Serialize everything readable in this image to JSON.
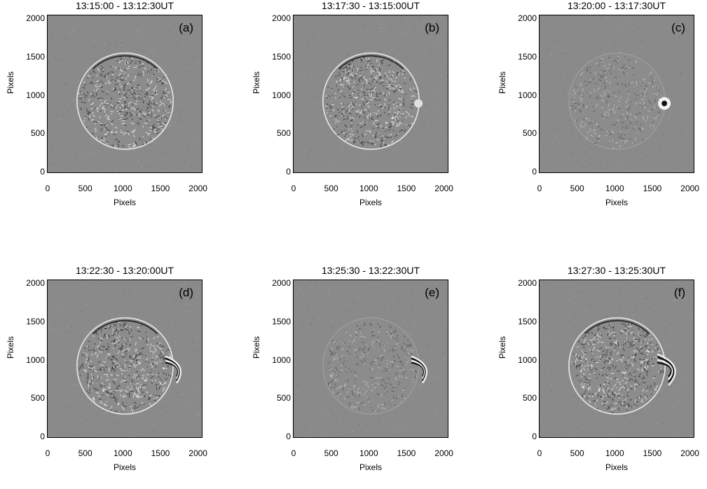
{
  "figure": {
    "panels": [
      {
        "title": "13:15:00 - 13:12:30UT",
        "label": "(a)",
        "style": "bright",
        "flare": "none"
      },
      {
        "title": "13:17:30 - 13:15:00UT",
        "label": "(b)",
        "style": "bright",
        "flare": "small"
      },
      {
        "title": "13:20:00 - 13:17:30UT",
        "label": "(c)",
        "style": "faint",
        "flare": "spot"
      },
      {
        "title": "13:22:30 - 13:20:00UT",
        "label": "(d)",
        "style": "bright",
        "flare": "loop"
      },
      {
        "title": "13:25:30 - 13:22:30UT",
        "label": "(e)",
        "style": "faint",
        "flare": "loop"
      },
      {
        "title": "13:27:30 - 13:25:30UT",
        "label": "(f)",
        "style": "bright",
        "flare": "big"
      }
    ],
    "axes": {
      "xlabel": "Pixels",
      "ylabel": "Pixels",
      "xticks": [
        "0",
        "500",
        "1000",
        "1500",
        "2000"
      ],
      "yticks": [
        "0",
        "500",
        "1000",
        "1500",
        "2000"
      ]
    }
  }
}
